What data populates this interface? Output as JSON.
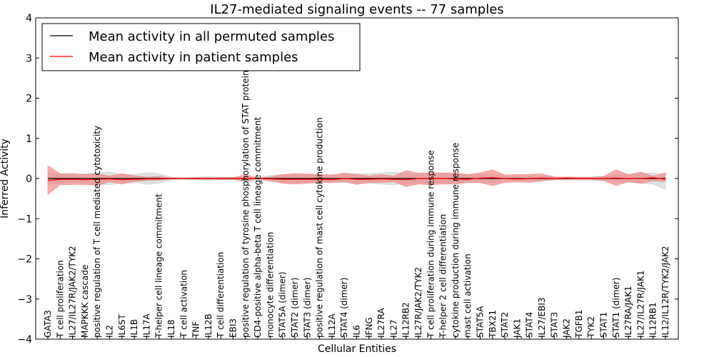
{
  "chart_data": {
    "type": "line",
    "title": "IL27-mediated signaling events -- 77 samples",
    "xlabel": "Cellular Entities",
    "ylabel": "Inferred Activity",
    "ylim": [
      -4,
      4
    ],
    "yticks": [
      -4,
      -3,
      -2,
      -1,
      0,
      1,
      2,
      3,
      4
    ],
    "ytick_labels": [
      "−4",
      "−3",
      "−2",
      "−1",
      "0",
      "1",
      "2",
      "3",
      "4"
    ],
    "legend_position": "top-left",
    "categories": [
      "GATA3",
      "T cell proliferation",
      "IL27/IL27R/JAK2/TYK2",
      "MAPKKK cascade",
      "positive regulation of T cell mediated cytotoxicity",
      "IL2",
      "IL6ST",
      "IL1B",
      "IL17A",
      "T-helper cell lineage commitment",
      "IL18",
      "T cell activation",
      "TNF",
      "IL12B",
      "T cell differentiation",
      "EBI3",
      "positive regulation of tyrosine phosphorylation of STAT protein",
      "CD4-positive alpha-beta T cell lineage commitment",
      "monocyte differentiation",
      "STAT5A (dimer)",
      "STAT2 (dimer)",
      "STAT3 (dimer)",
      "positive regulation of mast cell cytokine production",
      "IL12A",
      "STAT4 (dimer)",
      "IL6",
      "IFNG",
      "IL27RA",
      "IL27",
      "IL12RB2",
      "IL27R/JAK2/TYK2",
      "T cell proliferation during immune response",
      "T-helper 2 cell differentiation",
      "cytokine production during immune response",
      "mast cell activation",
      "STAT5A",
      "TBX21",
      "STAT2",
      "JAK1",
      "STAT4",
      "IL27/EBI3",
      "STAT3",
      "JAK2",
      "TGFB1",
      "TYK2",
      "STAT1",
      "STAT1 (dimer)",
      "IL27RA/JAK1",
      "IL27/IL27R/JAK1",
      "IL12RB1",
      "IL12/IL12R/TYK2/JAK2"
    ],
    "series": [
      {
        "name": "Mean activity in all permuted samples",
        "color": "#000000",
        "band_color": "#cccccc",
        "values": [
          0.0,
          0.0,
          0.0,
          0.0,
          0.0,
          0.0,
          0.0,
          0.0,
          0.0,
          0.0,
          0.0,
          0.0,
          0.0,
          0.0,
          0.0,
          0.0,
          0.0,
          0.0,
          0.0,
          0.0,
          0.0,
          0.0,
          0.0,
          0.0,
          0.0,
          0.0,
          0.0,
          0.0,
          0.0,
          0.0,
          0.0,
          0.0,
          0.0,
          0.0,
          0.0,
          0.0,
          0.0,
          0.0,
          0.0,
          0.0,
          0.0,
          0.0,
          0.0,
          0.0,
          0.0,
          0.0,
          0.0,
          0.0,
          0.0,
          0.0,
          0.0
        ],
        "lower": [
          -0.15,
          -0.12,
          -0.1,
          -0.12,
          -0.14,
          -0.16,
          -0.1,
          -0.1,
          -0.15,
          -0.12,
          -0.03,
          -0.02,
          -0.03,
          -0.05,
          -0.03,
          -0.03,
          -0.02,
          -0.02,
          -0.08,
          -0.1,
          -0.1,
          -0.1,
          -0.1,
          -0.1,
          -0.1,
          -0.12,
          -0.12,
          -0.14,
          -0.16,
          -0.12,
          -0.12,
          -0.12,
          -0.12,
          -0.1,
          -0.1,
          -0.1,
          -0.1,
          -0.06,
          -0.06,
          -0.06,
          -0.06,
          -0.04,
          -0.04,
          -0.04,
          -0.04,
          -0.06,
          -0.08,
          -0.1,
          -0.12,
          -0.14,
          -0.28
        ],
        "upper": [
          0.15,
          0.12,
          0.1,
          0.12,
          0.14,
          0.16,
          0.1,
          0.1,
          0.15,
          0.12,
          0.03,
          0.02,
          0.03,
          0.05,
          0.03,
          0.03,
          0.02,
          0.02,
          0.08,
          0.1,
          0.1,
          0.1,
          0.1,
          0.1,
          0.1,
          0.12,
          0.12,
          0.14,
          0.16,
          0.12,
          0.12,
          0.12,
          0.12,
          0.1,
          0.1,
          0.1,
          0.1,
          0.06,
          0.06,
          0.06,
          0.06,
          0.04,
          0.04,
          0.04,
          0.04,
          0.06,
          0.08,
          0.1,
          0.12,
          0.14,
          0.1
        ]
      },
      {
        "name": "Mean activity in patient samples",
        "color": "#ff0000",
        "band_color": "#f08080",
        "values": [
          -0.05,
          -0.02,
          -0.02,
          -0.03,
          -0.02,
          -0.01,
          -0.03,
          -0.02,
          -0.01,
          -0.01,
          0.0,
          0.0,
          0.0,
          0.0,
          0.0,
          0.0,
          0.0,
          0.0,
          -0.01,
          -0.02,
          -0.02,
          -0.02,
          -0.02,
          -0.03,
          0.0,
          -0.02,
          -0.02,
          -0.01,
          -0.02,
          -0.03,
          0.0,
          0.0,
          0.0,
          -0.01,
          -0.02,
          0.01,
          0.02,
          0.0,
          -0.01,
          0.0,
          0.01,
          0.0,
          0.01,
          0.0,
          0.0,
          0.0,
          0.01,
          0.0,
          0.0,
          0.02,
          -0.02
        ],
        "lower": [
          -0.4,
          -0.16,
          -0.15,
          -0.15,
          -0.17,
          -0.08,
          -0.14,
          -0.08,
          -0.05,
          -0.04,
          -0.02,
          -0.01,
          -0.02,
          -0.02,
          -0.02,
          -0.02,
          -0.08,
          -0.01,
          -0.05,
          -0.12,
          -0.14,
          -0.12,
          -0.1,
          -0.1,
          -0.08,
          -0.15,
          -0.1,
          -0.1,
          -0.08,
          -0.2,
          -0.14,
          -0.16,
          -0.14,
          -0.14,
          -0.1,
          -0.1,
          -0.18,
          -0.1,
          -0.09,
          -0.1,
          -0.06,
          -0.03,
          -0.02,
          -0.02,
          -0.02,
          -0.05,
          -0.18,
          -0.08,
          -0.12,
          -0.06,
          -0.08
        ],
        "upper": [
          0.32,
          0.12,
          0.12,
          0.1,
          0.12,
          0.06,
          0.12,
          0.07,
          0.04,
          0.05,
          0.02,
          0.01,
          0.02,
          0.02,
          0.02,
          0.02,
          0.1,
          0.01,
          0.04,
          0.1,
          0.12,
          0.11,
          0.1,
          0.08,
          0.14,
          0.1,
          0.06,
          0.1,
          0.06,
          0.2,
          0.13,
          0.15,
          0.14,
          0.14,
          0.1,
          0.14,
          0.22,
          0.09,
          0.1,
          0.1,
          0.12,
          0.04,
          0.04,
          0.03,
          0.03,
          0.05,
          0.22,
          0.1,
          0.16,
          0.06,
          0.14
        ]
      }
    ]
  }
}
